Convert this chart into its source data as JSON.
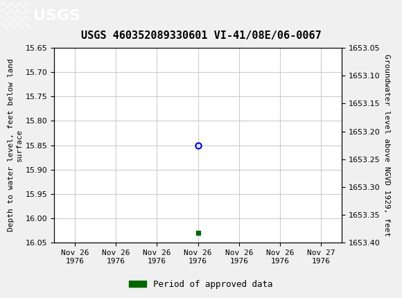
{
  "title": "USGS 460352089330601 VI-41/08E/06-0067",
  "ylabel_left": "Depth to water level, feet below land\nsurface",
  "ylabel_right": "Groundwater level above NGVD 1929, feet",
  "ylim_left": [
    15.65,
    16.05
  ],
  "ylim_right": [
    1653.05,
    1653.4
  ],
  "yticks_left": [
    15.65,
    15.7,
    15.75,
    15.8,
    15.85,
    15.9,
    15.95,
    16.0,
    16.05
  ],
  "yticks_right": [
    1653.05,
    1653.1,
    1653.15,
    1653.2,
    1653.25,
    1653.3,
    1653.35,
    1653.4
  ],
  "xtick_labels": [
    "Nov 26\n1976",
    "Nov 26\n1976",
    "Nov 26\n1976",
    "Nov 26\n1976",
    "Nov 26\n1976",
    "Nov 26\n1976",
    "Nov 27\n1976"
  ],
  "data_x_circle": [
    3.0
  ],
  "data_y_circle": [
    15.85
  ],
  "data_x_square": [
    3.0
  ],
  "data_y_square": [
    16.03
  ],
  "circle_color": "#0000cc",
  "square_color": "#006600",
  "grid_color": "#cccccc",
  "bg_color": "#f0f0f0",
  "plot_bg_color": "#ffffff",
  "header_bg": "#1a6e3e",
  "header_text_color": "#ffffff",
  "legend_label": "Period of approved data",
  "legend_color": "#006600",
  "title_fontsize": 11,
  "tick_fontsize": 8,
  "label_fontsize": 8
}
